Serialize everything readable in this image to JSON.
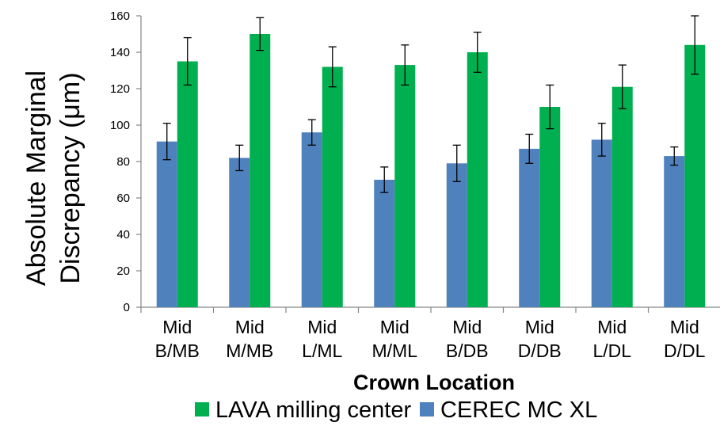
{
  "chart_data": {
    "type": "bar",
    "categories": [
      [
        "Mid",
        "B/MB"
      ],
      [
        "Mid",
        "M/MB"
      ],
      [
        "Mid",
        "L/ML"
      ],
      [
        "Mid",
        "M/ML"
      ],
      [
        "Mid",
        "B/DB"
      ],
      [
        "Mid",
        "D/DB"
      ],
      [
        "Mid",
        "L/DL"
      ],
      [
        "Mid",
        "D/DL"
      ]
    ],
    "series": [
      {
        "name": "CEREC MC XL",
        "color": "#4f81bd",
        "values": [
          91,
          82,
          96,
          70,
          79,
          87,
          92,
          83
        ],
        "error": [
          10,
          7,
          7,
          7,
          10,
          8,
          9,
          5
        ]
      },
      {
        "name": "LAVA milling center",
        "color": "#00b050",
        "values": [
          135,
          150,
          132,
          133,
          140,
          110,
          121,
          144
        ],
        "error": [
          13,
          9,
          11,
          11,
          11,
          12,
          12,
          16
        ]
      }
    ],
    "xlabel": "Crown Location",
    "ylabel": [
      "Absolute Marginal",
      "Discrepancy (μm)"
    ],
    "ylim": [
      0,
      160
    ],
    "yticks": [
      0,
      20,
      40,
      60,
      80,
      100,
      120,
      140,
      160
    ],
    "legend_position": "bottom",
    "legend_order": [
      "LAVA milling center",
      "CEREC MC XL"
    ],
    "grid": false
  }
}
